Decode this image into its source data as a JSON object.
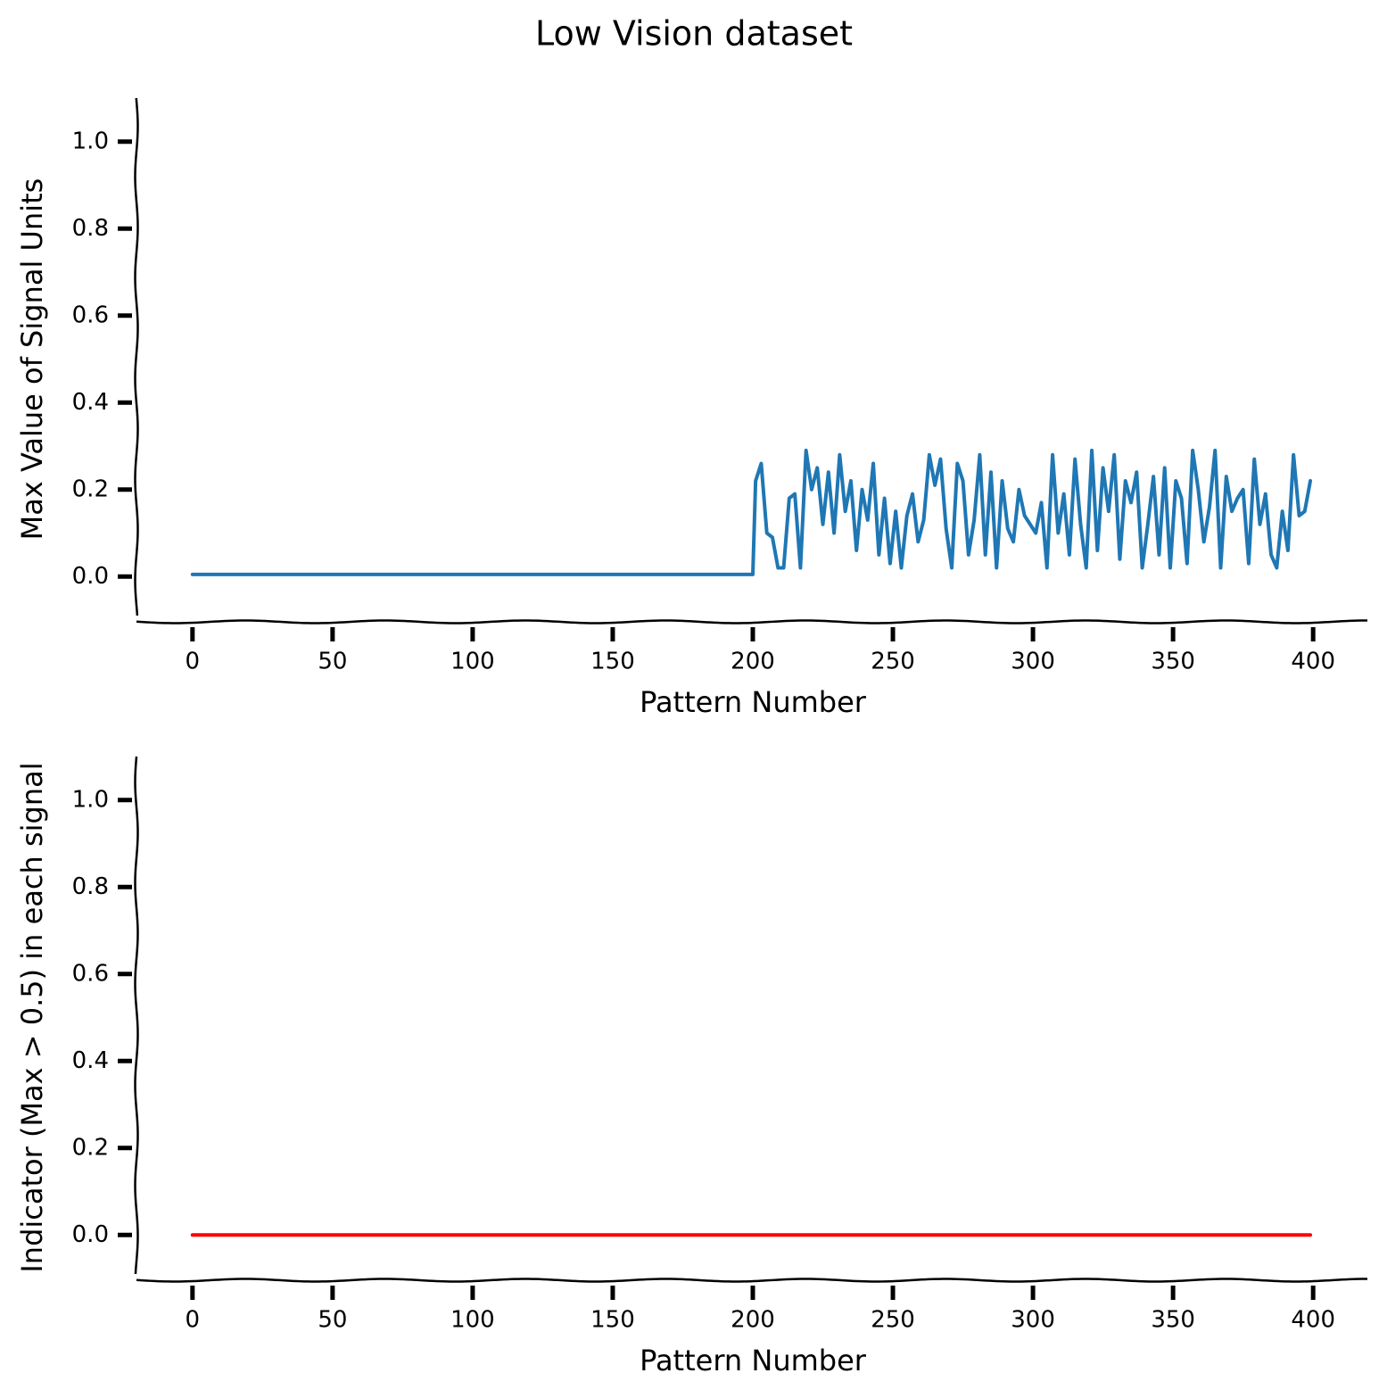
{
  "title": "Low Vision dataset",
  "chart_data": [
    {
      "type": "line",
      "xlabel": "Pattern Number",
      "ylabel": "Max Value of Signal Units",
      "x": [
        0,
        10,
        20,
        30,
        40,
        50,
        60,
        70,
        80,
        90,
        100,
        110,
        120,
        130,
        140,
        150,
        160,
        170,
        180,
        190,
        200,
        201,
        203,
        205,
        207,
        209,
        211,
        213,
        215,
        217,
        219,
        221,
        223,
        225,
        227,
        229,
        231,
        233,
        235,
        237,
        239,
        241,
        243,
        245,
        247,
        249,
        251,
        253,
        255,
        257,
        259,
        261,
        263,
        265,
        267,
        269,
        271,
        273,
        275,
        277,
        279,
        281,
        283,
        285,
        287,
        289,
        291,
        293,
        295,
        297,
        299,
        301,
        303,
        305,
        307,
        309,
        311,
        313,
        315,
        317,
        319,
        321,
        323,
        325,
        327,
        329,
        331,
        333,
        335,
        337,
        339,
        341,
        343,
        345,
        347,
        349,
        351,
        353,
        355,
        357,
        359,
        361,
        363,
        365,
        367,
        369,
        371,
        373,
        375,
        377,
        379,
        381,
        383,
        385,
        387,
        389,
        391,
        393,
        395,
        397,
        399
      ],
      "series": [
        {
          "name": "Max Value",
          "color": "#1f77b4",
          "values": [
            0.005,
            0.005,
            0.005,
            0.005,
            0.005,
            0.005,
            0.005,
            0.005,
            0.005,
            0.005,
            0.005,
            0.005,
            0.005,
            0.005,
            0.005,
            0.005,
            0.005,
            0.005,
            0.005,
            0.005,
            0.005,
            0.22,
            0.26,
            0.1,
            0.09,
            0.02,
            0.02,
            0.18,
            0.19,
            0.02,
            0.29,
            0.2,
            0.25,
            0.12,
            0.24,
            0.1,
            0.28,
            0.15,
            0.22,
            0.06,
            0.2,
            0.13,
            0.26,
            0.05,
            0.18,
            0.03,
            0.15,
            0.02,
            0.14,
            0.19,
            0.08,
            0.13,
            0.28,
            0.21,
            0.27,
            0.11,
            0.02,
            0.26,
            0.22,
            0.05,
            0.13,
            0.28,
            0.05,
            0.24,
            0.02,
            0.22,
            0.11,
            0.08,
            0.2,
            0.14,
            0.12,
            0.1,
            0.17,
            0.02,
            0.28,
            0.1,
            0.19,
            0.05,
            0.27,
            0.12,
            0.02,
            0.29,
            0.06,
            0.25,
            0.15,
            0.28,
            0.04,
            0.22,
            0.17,
            0.24,
            0.02,
            0.12,
            0.23,
            0.05,
            0.25,
            0.02,
            0.22,
            0.18,
            0.03,
            0.29,
            0.2,
            0.08,
            0.16,
            0.29,
            0.02,
            0.23,
            0.15,
            0.18,
            0.2,
            0.03,
            0.27,
            0.12,
            0.19,
            0.05,
            0.02,
            0.15,
            0.06,
            0.28,
            0.14,
            0.15,
            0.22
          ]
        }
      ],
      "xlim": [
        -20,
        420
      ],
      "xticks": [
        0,
        50,
        100,
        150,
        200,
        250,
        300,
        350,
        400
      ],
      "ylim": [
        -0.1,
        1.1
      ],
      "yticks": [
        {
          "value": 0,
          "label": "0.0"
        },
        {
          "value": 0.2,
          "label": "0.2"
        },
        {
          "value": 0.4,
          "label": "0.4"
        },
        {
          "value": 0.6,
          "label": "0.6"
        },
        {
          "value": 0.8,
          "label": "0.8"
        },
        {
          "value": 1,
          "label": "1.0"
        }
      ]
    },
    {
      "type": "line",
      "xlabel": "Pattern Number",
      "ylabel": "Indicator (Max > 0.5) in each signal",
      "x": [
        0,
        50,
        100,
        150,
        200,
        250,
        300,
        350,
        399
      ],
      "series": [
        {
          "name": "Indicator",
          "color": "#ff0000",
          "values": [
            0,
            0,
            0,
            0,
            0,
            0,
            0,
            0,
            0
          ]
        }
      ],
      "xlim": [
        -20,
        420
      ],
      "xticks": [
        0,
        50,
        100,
        150,
        200,
        250,
        300,
        350,
        400
      ],
      "ylim": [
        -0.1,
        1.1
      ],
      "yticks": [
        {
          "value": 0,
          "label": "0.0"
        },
        {
          "value": 0.2,
          "label": "0.2"
        },
        {
          "value": 0.4,
          "label": "0.4"
        },
        {
          "value": 0.6,
          "label": "0.6"
        },
        {
          "value": 0.8,
          "label": "0.8"
        },
        {
          "value": 1,
          "label": "1.0"
        }
      ]
    }
  ]
}
